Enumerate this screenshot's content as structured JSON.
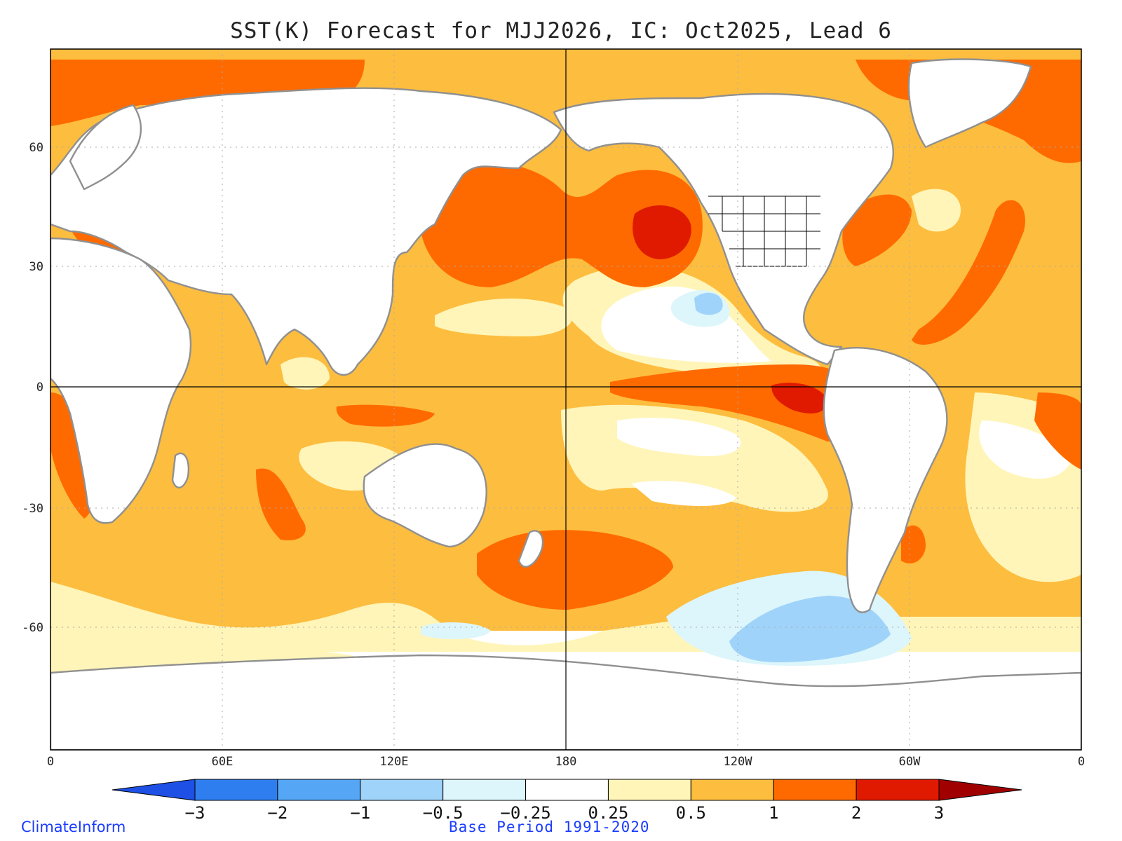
{
  "title": "SST(K) Forecast for MJJ2026, IC: Oct2025, Lead 6",
  "lat_labels": [
    "60",
    "30",
    "0",
    "-30",
    "-60"
  ],
  "lon_labels": [
    "0",
    "60E",
    "120E",
    "180",
    "120W",
    "60W",
    "0"
  ],
  "colorbar": {
    "levels": [
      "-3",
      "-2",
      "-1",
      "-0.5",
      "-0.25",
      "0.25",
      "0.5",
      "1",
      "2",
      "3"
    ],
    "colors": [
      "#1e50e6",
      "#2f7ef0",
      "#55a7f5",
      "#9fd3fa",
      "#dcf6fb",
      "#ffffff",
      "#fff5b8",
      "#fdbd3f",
      "#ff6a00",
      "#e01a00",
      "#a00000"
    ]
  },
  "credit_left": "ClimateInform",
  "credit_center": "Base Period 1991-2020",
  "colors": {
    "land": "#ffffff",
    "coast": "#909090",
    "grid": "#aaaaaa",
    "credit": "#1a3cff"
  }
}
